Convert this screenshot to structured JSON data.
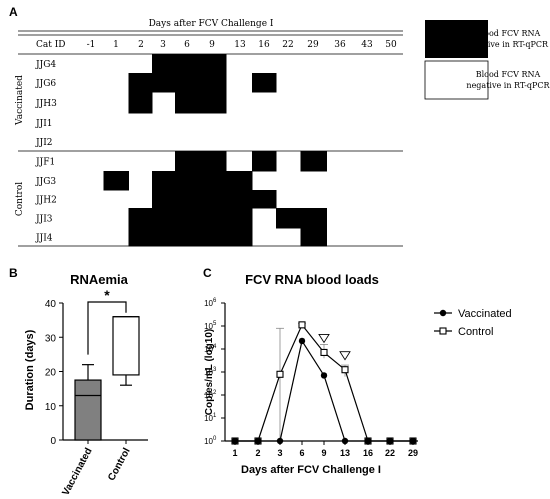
{
  "panel_a": {
    "label": "A",
    "header": "Days after FCV Challenge I",
    "id_header": "Cat ID",
    "days": [
      "-1",
      "1",
      "2",
      "3",
      "6",
      "9",
      "13",
      "16",
      "22",
      "29",
      "36",
      "43",
      "50"
    ],
    "groups": [
      {
        "name": "Vaccinated",
        "cats": [
          {
            "id": "JJG4",
            "positive": [
              0,
              0,
              0,
              1,
              1,
              1,
              0,
              0,
              0,
              0,
              0,
              0,
              0
            ]
          },
          {
            "id": "JJG6",
            "positive": [
              0,
              0,
              1,
              1,
              1,
              1,
              0,
              1,
              0,
              0,
              0,
              0,
              0
            ]
          },
          {
            "id": "JJH3",
            "positive": [
              0,
              0,
              1,
              0,
              1,
              1,
              0,
              0,
              0,
              0,
              0,
              0,
              0
            ]
          },
          {
            "id": "JJI1",
            "positive": [
              0,
              0,
              0,
              0,
              0,
              0,
              0,
              0,
              0,
              0,
              0,
              0,
              0
            ]
          },
          {
            "id": "JJI2",
            "positive": [
              0,
              0,
              0,
              0,
              0,
              0,
              0,
              0,
              0,
              0,
              0,
              0,
              0
            ]
          }
        ]
      },
      {
        "name": "Control",
        "cats": [
          {
            "id": "JJF1",
            "positive": [
              0,
              0,
              0,
              0,
              1,
              1,
              0,
              1,
              0,
              1,
              0,
              0,
              0
            ]
          },
          {
            "id": "JJG3",
            "positive": [
              0,
              1,
              0,
              1,
              1,
              1,
              1,
              0,
              0,
              0,
              0,
              0,
              0
            ]
          },
          {
            "id": "JJH2",
            "positive": [
              0,
              0,
              0,
              1,
              1,
              1,
              1,
              1,
              0,
              0,
              0,
              0,
              0
            ]
          },
          {
            "id": "JJI3",
            "positive": [
              0,
              0,
              1,
              1,
              1,
              1,
              1,
              0,
              1,
              1,
              0,
              0,
              0
            ]
          },
          {
            "id": "JJI4",
            "positive": [
              0,
              0,
              1,
              1,
              1,
              1,
              1,
              0,
              0,
              1,
              0,
              0,
              0
            ]
          }
        ]
      }
    ],
    "legend": [
      {
        "state": "positive",
        "text": "Blood FCV RNA positive in RT-qPCR",
        "line1": "Blood FCV RNA",
        "line2": "positive in RT-qPCR",
        "color": "#000000"
      },
      {
        "state": "negative",
        "text": "Blood FCV RNA negative in RT-qPCR",
        "line1": "Blood FCV RNA",
        "line2": "negative in RT-qPCR",
        "color": "#ffffff"
      }
    ]
  },
  "chart_data": [
    {
      "panel": "B",
      "type": "box",
      "title": "RNAemia",
      "ylabel": "Duration (days)",
      "ylim": [
        0,
        40
      ],
      "yticks": [
        0,
        10,
        20,
        30,
        40
      ],
      "categories": [
        "Vaccinated",
        "Control"
      ],
      "boxes": [
        {
          "name": "Vaccinated",
          "min": 0,
          "q1": 0,
          "median": 13,
          "q3": 17.5,
          "max": 22,
          "fill": "#808080"
        },
        {
          "name": "Control",
          "min": 16,
          "q1": 19,
          "median": 36,
          "q3": 36,
          "max": 36,
          "fill": "#ffffff"
        }
      ],
      "significance": "*"
    },
    {
      "panel": "C",
      "type": "line",
      "title": "FCV RNA blood loads",
      "xlabel": "Days after FCV Challenge I",
      "ylabel": "Copies/mL (log10)",
      "categories": [
        "1",
        "2",
        "3",
        "6",
        "9",
        "13",
        "16",
        "22",
        "29"
      ],
      "ytick_exponents": [
        0,
        1,
        2,
        3,
        4,
        5,
        6
      ],
      "ytick_base": "10",
      "log_scale": true,
      "series": [
        {
          "name": "Vaccinated",
          "marker": "filled-circle",
          "log10_values": [
            0,
            0,
            0,
            4.35,
            2.85,
            0,
            0,
            0,
            0
          ]
        },
        {
          "name": "Control",
          "marker": "open-square",
          "log10_values": [
            0,
            0,
            2.9,
            5.05,
            3.85,
            3.1,
            0,
            0,
            0
          ],
          "error_upper_log10": [
            null,
            null,
            4.9,
            5.12,
            4.2,
            3.3,
            null,
            null,
            null
          ],
          "error_lower_log10": [
            null,
            null,
            0,
            4.9,
            3.6,
            2.8,
            null,
            null,
            null
          ]
        }
      ],
      "annotation_markers": [
        "9",
        "13"
      ],
      "annotation_symbol": "▽"
    }
  ],
  "labels": {
    "panel_b": "B",
    "panel_c": "C"
  }
}
